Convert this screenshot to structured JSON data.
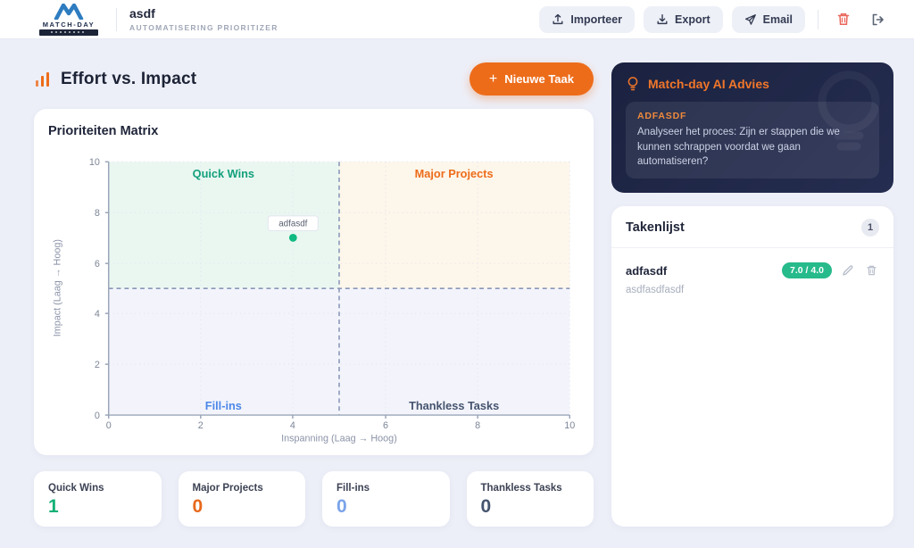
{
  "header": {
    "brand": "MATCH-DAY",
    "title": "asdf",
    "subtitle": "AUTOMATISERING PRIORITIZER",
    "buttons": {
      "import": "Importeer",
      "export": "Export",
      "email": "Email"
    }
  },
  "main": {
    "heading": "Effort vs. Impact",
    "new_task": {
      "plus": "+",
      "label": "Nieuwe Taak"
    }
  },
  "chart_data": {
    "type": "scatter",
    "title": "Prioriteiten Matrix",
    "xlabel": "Inspanning (Laag → Hoog)",
    "ylabel": "Impact (Laag → Hoog)",
    "xlim": [
      0,
      10
    ],
    "ylim": [
      0,
      10
    ],
    "xticks": [
      "0",
      "2",
      "4",
      "6",
      "8",
      "10"
    ],
    "yticks": [
      "0",
      "2",
      "4",
      "6",
      "8",
      "10"
    ],
    "grid": "dotted",
    "thresholds": {
      "x": 5,
      "y": 5
    },
    "quadrants": [
      {
        "label": "Quick Wins",
        "color": "#13a07c",
        "bg": "#eaf7f1"
      },
      {
        "label": "Major Projects",
        "color": "#ed6c1a",
        "bg": "#fdf6ea"
      },
      {
        "label": "Fill-ins",
        "color": "#4d87e8",
        "bg": "#f3f4fb"
      },
      {
        "label": "Thankless Tasks",
        "color": "#45546e",
        "bg": "#f3f4fb"
      }
    ],
    "points": [
      {
        "label": "adfasdf",
        "x": 4,
        "y": 7,
        "color": "#10b981"
      }
    ]
  },
  "ai_card": {
    "title": "Match-day AI Advies",
    "task_name": "ADFASDF",
    "advice": "Analyseer het proces: Zijn er stappen die we kunnen schrappen voordat we gaan automatiseren?"
  },
  "task_list": {
    "title": "Takenlijst",
    "count": "1",
    "items": [
      {
        "name": "adfasdf",
        "score": "7.0 / 4.0",
        "description": "asdfasdfasdf"
      }
    ]
  },
  "stats": [
    {
      "label": "Quick Wins",
      "value": "1",
      "color": "#13b176"
    },
    {
      "label": "Major Projects",
      "value": "0",
      "color": "#e8681c"
    },
    {
      "label": "Fill-ins",
      "value": "0",
      "color": "#7aa3ea"
    },
    {
      "label": "Thankless Tasks",
      "value": "0",
      "color": "#45546e"
    }
  ],
  "colors": {
    "accent_orange": "#ed6c1a",
    "navy": "#1b2240",
    "danger": "#e9655a"
  }
}
